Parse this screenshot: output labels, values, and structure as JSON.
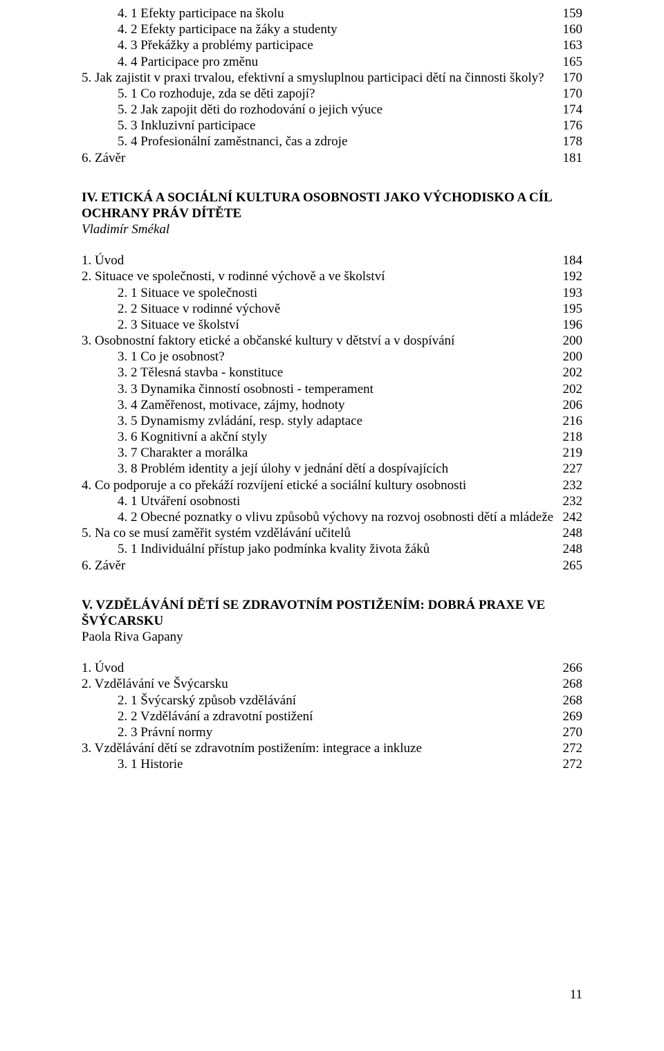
{
  "blockA": {
    "lines": [
      {
        "indent": 1,
        "text": "4. 1 Efekty participace na školu",
        "page": "159"
      },
      {
        "indent": 1,
        "text": "4. 2 Efekty participace na žáky a studenty",
        "page": "160"
      },
      {
        "indent": 1,
        "text": "4. 3 Překážky a problémy participace",
        "page": "163"
      },
      {
        "indent": 1,
        "text": "4. 4 Participace pro změnu",
        "page": "165"
      },
      {
        "indent": 0,
        "text": "5. Jak zajistit v praxi trvalou, efektivní a smysluplnou participaci dětí na činnosti školy?",
        "page": "170"
      },
      {
        "indent": 1,
        "text": "5. 1 Co rozhoduje, zda se děti zapojí?",
        "page": "170"
      },
      {
        "indent": 1,
        "text": "5. 2 Jak zapojit děti do rozhodování o jejich výuce",
        "page": "174"
      },
      {
        "indent": 1,
        "text": "5. 3 Inkluzivní participace",
        "page": "176"
      },
      {
        "indent": 1,
        "text": "5. 4 Profesionální zaměstnanci, čas a zdroje",
        "page": "178"
      },
      {
        "indent": 0,
        "text": "6. Závěr",
        "page": "181"
      }
    ]
  },
  "sectionIV": {
    "heading": "IV. ETICKÁ A SOCIÁLNÍ KULTURA OSOBNOSTI JAKO VÝCHODISKO A CÍL OCHRANY PRÁV DÍTĚTE",
    "author_italic": "Vladimír Smékal",
    "lines": [
      {
        "indent": 0,
        "text": "1. Úvod",
        "page": "184"
      },
      {
        "indent": 0,
        "text": "2. Situace ve společnosti, v rodinné výchově a ve školství",
        "page": "192"
      },
      {
        "indent": 1,
        "text": "2. 1 Situace ve společnosti",
        "page": "193"
      },
      {
        "indent": 1,
        "text": "2. 2 Situace v rodinné výchově",
        "page": "195"
      },
      {
        "indent": 1,
        "text": "2. 3 Situace ve školství",
        "page": "196"
      },
      {
        "indent": 0,
        "text": "3. Osobnostní faktory etické a občanské kultury v dětství a v dospívání",
        "page": "200"
      },
      {
        "indent": 1,
        "text": "3. 1 Co je osobnost?",
        "page": "200"
      },
      {
        "indent": 1,
        "text": "3. 2 Tělesná stavba - konstituce",
        "page": "202"
      },
      {
        "indent": 1,
        "text": "3. 3 Dynamika činností osobnosti - temperament",
        "page": "202"
      },
      {
        "indent": 1,
        "text": "3. 4 Zaměřenost, motivace, zájmy, hodnoty",
        "page": "206"
      },
      {
        "indent": 1,
        "text": "3. 5 Dynamismy zvládání, resp. styly adaptace",
        "page": "216"
      },
      {
        "indent": 1,
        "text": "3. 6 Kognitivní a akční styly",
        "page": "218"
      },
      {
        "indent": 1,
        "text": "3. 7 Charakter a morálka",
        "page": "219"
      },
      {
        "indent": 1,
        "text": "3. 8 Problém identity a její úlohy v jednání dětí a dospívajících",
        "page": "227"
      },
      {
        "indent": 0,
        "text": "4. Co podporuje a co překáží rozvíjení etické a sociální kultury osobnosti",
        "page": "232"
      },
      {
        "indent": 1,
        "text": "4. 1 Utváření osobnosti",
        "page": "232"
      },
      {
        "indent": 1,
        "text": "4. 2 Obecné poznatky o vlivu způsobů výchovy na rozvoj osobnosti dětí a mládeže",
        "page": "242"
      },
      {
        "indent": 0,
        "text": "5. Na co se musí zaměřit systém vzdělávání učitelů",
        "page": "248"
      },
      {
        "indent": 1,
        "text": "5. 1 Individuální přístup jako podmínka kvality života žáků",
        "page": "248"
      },
      {
        "indent": 0,
        "text": "6. Závěr",
        "page": "265"
      }
    ]
  },
  "sectionV": {
    "heading": "V. VZDĚLÁVÁNÍ DĚTÍ SE ZDRAVOTNÍM POSTIŽENÍM: DOBRÁ PRAXE VE ŠVÝCARSKU",
    "author_plain": "Paola Riva Gapany",
    "lines": [
      {
        "indent": 0,
        "text": "1. Úvod",
        "page": "266"
      },
      {
        "indent": 0,
        "text": "2. Vzdělávání ve Švýcarsku",
        "page": "268"
      },
      {
        "indent": 1,
        "text": "2. 1 Švýcarský způsob vzdělávání",
        "page": "268"
      },
      {
        "indent": 1,
        "text": "2. 2 Vzdělávání a zdravotní postižení",
        "page": "269"
      },
      {
        "indent": 1,
        "text": "2. 3 Právní normy",
        "page": "270"
      },
      {
        "indent": 0,
        "text": "3. Vzdělávání dětí se zdravotním postižením: integrace a inkluze",
        "page": "272"
      },
      {
        "indent": 1,
        "text": "3. 1 Historie",
        "page": "272"
      }
    ]
  },
  "pageNumber": "11"
}
